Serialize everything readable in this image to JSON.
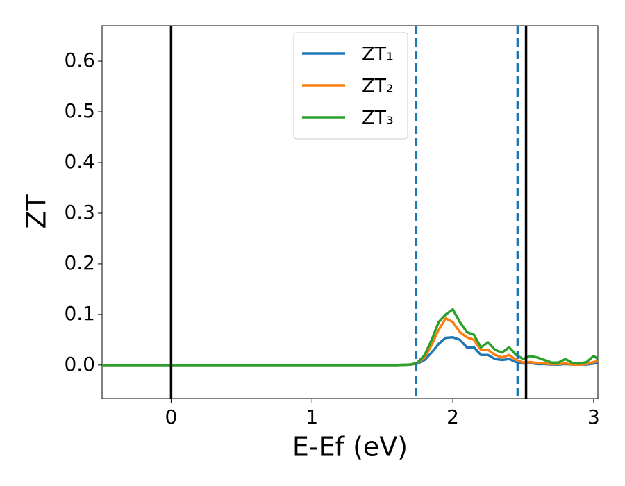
{
  "chart_data": {
    "type": "line",
    "xlabel": "E-Ef (eV)",
    "ylabel": "ZT",
    "x": [
      -0.49,
      1.6,
      1.7,
      1.75,
      1.8,
      1.85,
      1.9,
      1.95,
      2.0,
      2.05,
      2.1,
      2.15,
      2.2,
      2.25,
      2.3,
      2.35,
      2.4,
      2.45,
      2.5,
      2.55,
      2.6,
      2.65,
      2.7,
      2.75,
      2.8,
      2.85,
      2.9,
      2.95,
      3.0,
      3.03
    ],
    "series": [
      {
        "name": "ZT₁",
        "color": "#1f77b4",
        "values": [
          0,
          0,
          0.001,
          0.003,
          0.01,
          0.025,
          0.042,
          0.054,
          0.055,
          0.05,
          0.035,
          0.035,
          0.02,
          0.02,
          0.012,
          0.01,
          0.012,
          0.006,
          0.003,
          0.004,
          0.002,
          0.002,
          0.001,
          0.001,
          0.002,
          0.001,
          0.001,
          0.001,
          0.003,
          0.004
        ]
      },
      {
        "name": "ZT₂",
        "color": "#ff7f0e",
        "values": [
          0,
          0,
          0.001,
          0.004,
          0.015,
          0.04,
          0.07,
          0.092,
          0.085,
          0.065,
          0.055,
          0.05,
          0.03,
          0.03,
          0.02,
          0.015,
          0.02,
          0.01,
          0.005,
          0.006,
          0.004,
          0.003,
          0.002,
          0.002,
          0.003,
          0.001,
          0.001,
          0.002,
          0.006,
          0.008
        ]
      },
      {
        "name": "ZT₃",
        "color": "#2ca02c",
        "values": [
          0,
          0,
          0.001,
          0.005,
          0.02,
          0.05,
          0.085,
          0.1,
          0.11,
          0.085,
          0.065,
          0.06,
          0.035,
          0.045,
          0.03,
          0.025,
          0.035,
          0.02,
          0.012,
          0.018,
          0.015,
          0.01,
          0.005,
          0.005,
          0.012,
          0.004,
          0.003,
          0.006,
          0.018,
          0.012
        ]
      }
    ],
    "vlines": [
      {
        "x": 0,
        "color": "#000000",
        "style": "solid"
      },
      {
        "x": 2.52,
        "color": "#000000",
        "style": "solid"
      },
      {
        "x": 1.74,
        "color": "#1f77b4",
        "style": "dashed"
      },
      {
        "x": 2.46,
        "color": "#1f77b4",
        "style": "dashed"
      }
    ],
    "xlim": [
      -0.49,
      3.03
    ],
    "xticks": [
      0,
      1,
      2,
      3
    ],
    "ylim": [
      -0.066,
      0.67
    ],
    "yticks": [
      {
        "value": 0,
        "label": "0.0"
      },
      0.1,
      0.2,
      0.3,
      0.4,
      0.5,
      0.6
    ],
    "legend": "upper center",
    "grid": false
  }
}
